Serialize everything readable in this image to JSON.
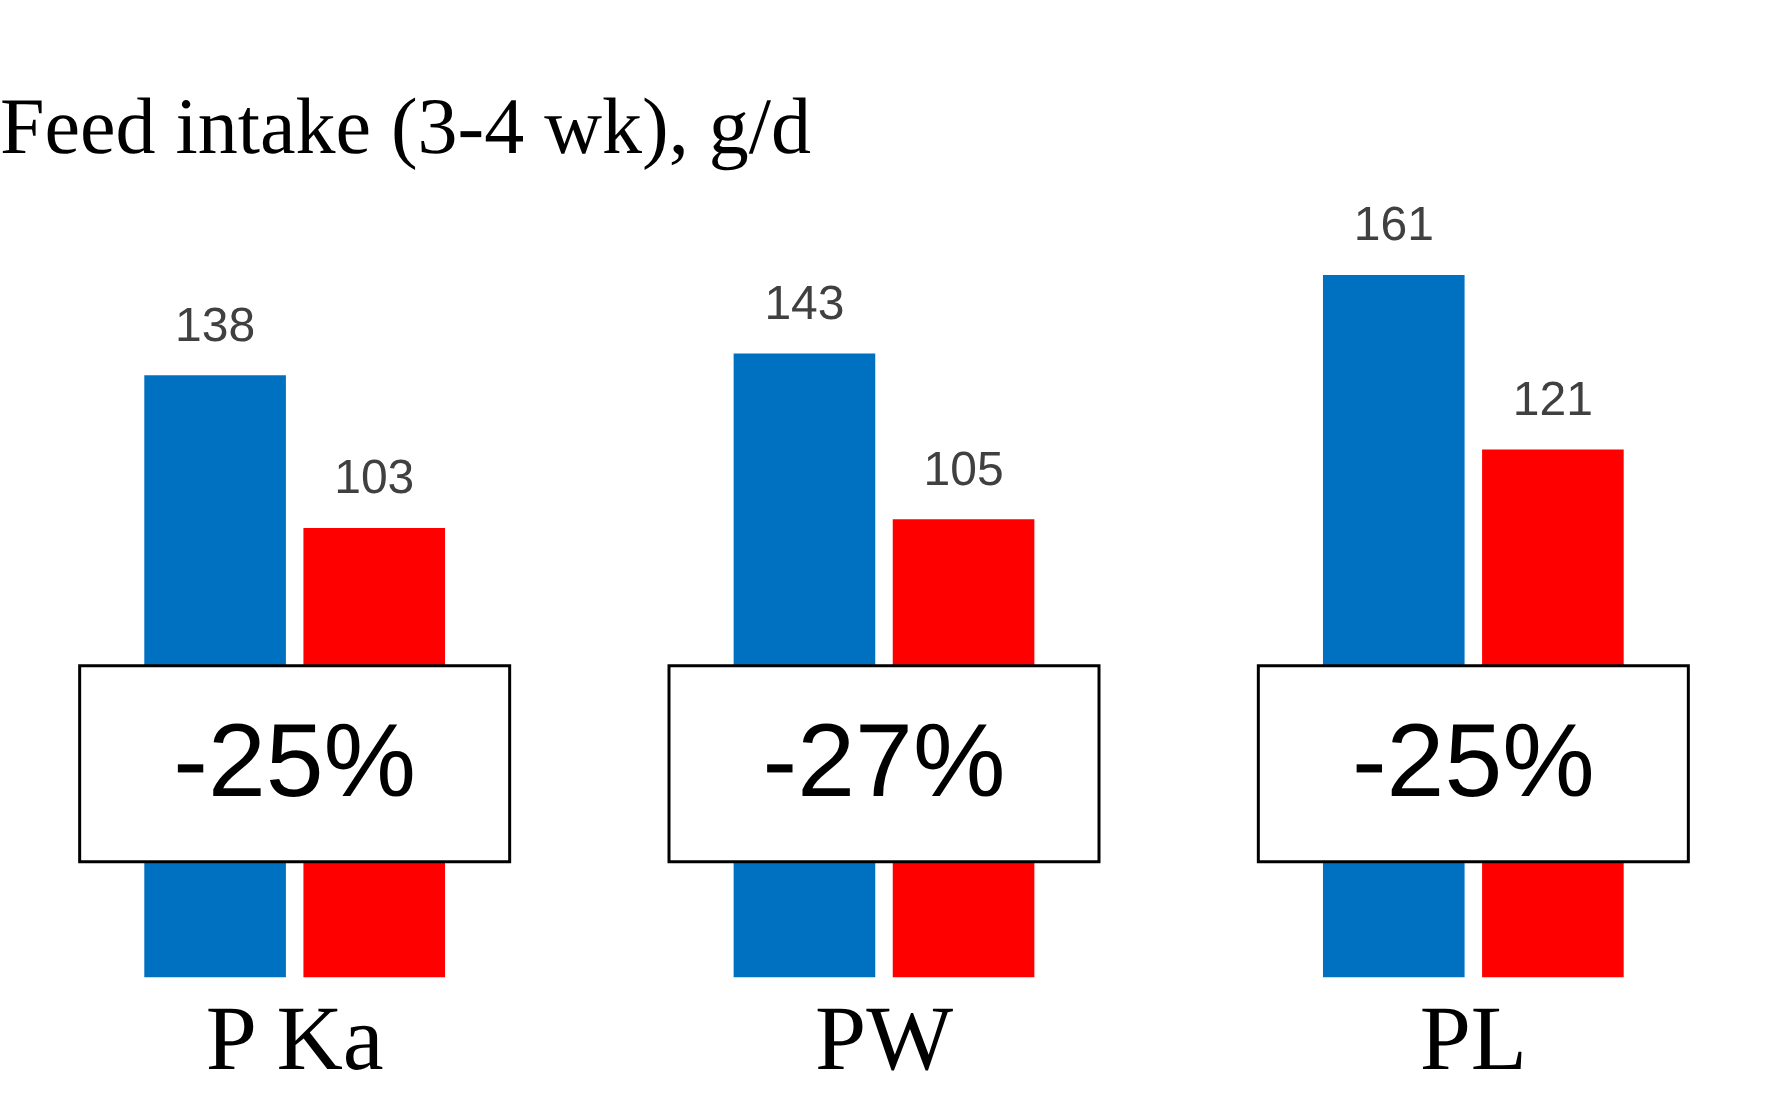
{
  "chart_data": {
    "type": "bar",
    "title": "Feed intake (3-4 wk), g/d",
    "categories": [
      "P Ka",
      "PW",
      "PL"
    ],
    "series": [
      {
        "color": "#0070c0",
        "values": [
          138,
          143,
          161
        ]
      },
      {
        "color": "#ff0000",
        "values": [
          103,
          105,
          121
        ]
      }
    ],
    "data_labels": true,
    "grid": false,
    "legend": false,
    "annotations": [
      "-25%",
      "-27%",
      "-25%"
    ]
  }
}
